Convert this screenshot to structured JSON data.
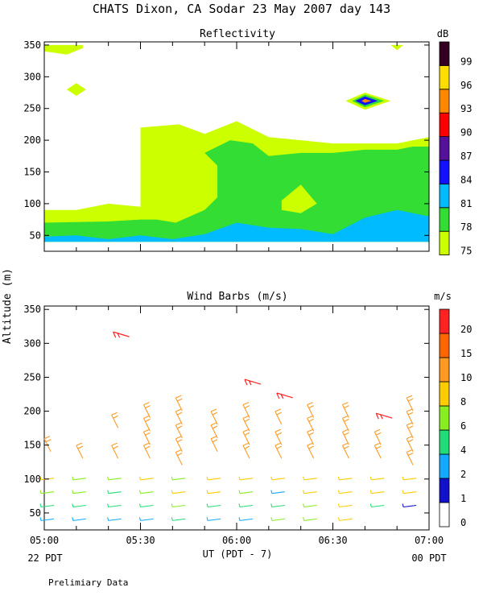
{
  "title": "CHATS Dixon, CA  Sodar  23 May 2007  day 143",
  "footer_note": "Prelimiary Data",
  "chart_data": [
    {
      "type": "heatmap",
      "title": "Reflectivity",
      "colorbar_unit": "dB",
      "colorbar_ticks": [
        "75",
        "78",
        "81",
        "84",
        "87",
        "90",
        "93",
        "96",
        "99"
      ],
      "colorbar_colors": [
        "#ccff00",
        "#33dd33",
        "#00bbff",
        "#1111ff",
        "#551199",
        "#ff0000",
        "#ff8800",
        "#ffdd00",
        "#330022"
      ],
      "ylim": [
        25,
        355
      ],
      "xlim": [
        "05:00",
        "07:00"
      ],
      "yticks": [
        "50",
        "100",
        "150",
        "200",
        "250",
        "300",
        "350"
      ],
      "regions": [
        {
          "level": "75",
          "points": [
            [
              "05:00",
              90
            ],
            [
              "05:10",
              90
            ],
            [
              "05:20",
              100
            ],
            [
              "05:30",
              95
            ],
            [
              "05:30",
              220
            ],
            [
              "05:42",
              225
            ],
            [
              "05:50",
              210
            ],
            [
              "06:00",
              230
            ],
            [
              "06:10",
              205
            ],
            [
              "06:20",
              200
            ],
            [
              "06:30",
              195
            ],
            [
              "06:40",
              195
            ],
            [
              "06:50",
              195
            ],
            [
              "07:00",
              205
            ],
            [
              "07:00",
              40
            ],
            [
              "05:00",
              40
            ]
          ]
        },
        {
          "level": "78",
          "points": [
            [
              "05:00",
              70
            ],
            [
              "05:20",
              72
            ],
            [
              "05:30",
              75
            ],
            [
              "05:35",
              75
            ],
            [
              "05:41",
              70
            ],
            [
              "05:50",
              90
            ],
            [
              "05:54",
              110
            ],
            [
              "05:54",
              160
            ],
            [
              "05:50",
              180
            ],
            [
              "05:58",
              200
            ],
            [
              "06:05",
              195
            ],
            [
              "06:10",
              175
            ],
            [
              "06:20",
              180
            ],
            [
              "06:30",
              180
            ],
            [
              "06:40",
              185
            ],
            [
              "06:50",
              185
            ],
            [
              "06:55",
              190
            ],
            [
              "07:00",
              190
            ],
            [
              "07:00",
              40
            ],
            [
              "05:00",
              40
            ]
          ]
        },
        {
          "level": "81",
          "points": [
            [
              "05:00",
              48
            ],
            [
              "05:10",
              50
            ],
            [
              "05:20",
              44
            ],
            [
              "05:30",
              50
            ],
            [
              "05:40",
              44
            ],
            [
              "05:50",
              52
            ],
            [
              "06:00",
              70
            ],
            [
              "06:10",
              62
            ],
            [
              "06:20",
              60
            ],
            [
              "06:30",
              52
            ],
            [
              "06:40",
              78
            ],
            [
              "06:50",
              90
            ],
            [
              "07:00",
              80
            ],
            [
              "07:00",
              40
            ],
            [
              "05:00",
              40
            ]
          ]
        }
      ],
      "patches": [
        {
          "level": "75",
          "points": [
            [
              "05:00",
              350
            ],
            [
              "05:12",
              350
            ],
            [
              "05:12",
              345
            ],
            [
              "05:07",
              335
            ],
            [
              "05:00",
              340
            ]
          ]
        },
        {
          "level": "75",
          "points": [
            [
              "05:07",
              280
            ],
            [
              "05:10",
              290
            ],
            [
              "05:13",
              280
            ],
            [
              "05:10",
              270
            ]
          ]
        },
        {
          "level": "75",
          "points": [
            [
              "06:48",
              350
            ],
            [
              "06:52",
              350
            ],
            [
              "06:50",
              342
            ]
          ]
        },
        {
          "level": "75",
          "points": [
            [
              "06:14",
              105
            ],
            [
              "06:20",
              130
            ],
            [
              "06:25",
              100
            ],
            [
              "06:20",
              85
            ],
            [
              "06:14",
              90
            ]
          ]
        },
        {
          "level": "75",
          "points": [
            [
              "05:48",
              195
            ],
            [
              "05:51",
              188
            ],
            [
              "05:48",
              180
            ],
            [
              "05:45",
              188
            ]
          ]
        },
        {
          "level": "75",
          "points": [
            [
              "06:34",
              262
            ],
            [
              "06:40",
              275
            ],
            [
              "06:48",
              262
            ],
            [
              "06:40",
              248
            ]
          ]
        },
        {
          "level": "78",
          "points": [
            [
              "06:36",
              262
            ],
            [
              "06:40",
              272
            ],
            [
              "06:46",
              262
            ],
            [
              "06:40",
              252
            ]
          ]
        },
        {
          "level": "84",
          "points": [
            [
              "06:37",
              262
            ],
            [
              "06:40",
              269
            ],
            [
              "06:44",
              262
            ],
            [
              "06:40",
              255
            ]
          ]
        },
        {
          "level": "93",
          "points": [
            [
              "06:39",
              262
            ],
            [
              "06:40",
              265
            ],
            [
              "06:42",
              262
            ],
            [
              "06:40",
              259
            ]
          ]
        }
      ]
    },
    {
      "type": "scatter",
      "title": "Wind Barbs (m/s)",
      "ylabel": "Altitude (m)",
      "colorbar_unit": "m/s",
      "colorbar_ticks": [
        "0",
        "1",
        "2",
        "4",
        "6",
        "8",
        "10",
        "15",
        "20"
      ],
      "colorbar_colors": [
        "#ffffff",
        "#1111cc",
        "#11aaff",
        "#22dd77",
        "#88ee22",
        "#ffcc00",
        "#ff9922",
        "#ff6600",
        "#ff2222"
      ],
      "ylim": [
        25,
        355
      ],
      "xlim": [
        "05:00",
        "07:00"
      ],
      "yticks": [
        "50",
        "100",
        "150",
        "200",
        "250",
        "300",
        "350"
      ],
      "xticks": [
        "05:00",
        "05:30",
        "06:00",
        "06:30",
        "07:00"
      ],
      "xlabel": "UT  (PDT - 7)",
      "x_left_label": "22 PDT",
      "x_right_label": "00 PDT",
      "barbs": [
        {
          "t": "05:01",
          "z": 40,
          "speed": 2
        },
        {
          "t": "05:01",
          "z": 60,
          "speed": 5
        },
        {
          "t": "05:01",
          "z": 80,
          "speed": 6
        },
        {
          "t": "05:01",
          "z": 100,
          "speed": 8
        },
        {
          "t": "05:01",
          "z": 150,
          "speed": 10
        },
        {
          "t": "05:11",
          "z": 40,
          "speed": 2
        },
        {
          "t": "05:11",
          "z": 60,
          "speed": 5
        },
        {
          "t": "05:11",
          "z": 80,
          "speed": 6
        },
        {
          "t": "05:11",
          "z": 100,
          "speed": 6
        },
        {
          "t": "05:11",
          "z": 140,
          "speed": 10
        },
        {
          "t": "05:22",
          "z": 40,
          "speed": 2
        },
        {
          "t": "05:22",
          "z": 60,
          "speed": 5
        },
        {
          "t": "05:22",
          "z": 80,
          "speed": 5
        },
        {
          "t": "05:22",
          "z": 100,
          "speed": 6
        },
        {
          "t": "05:22",
          "z": 140,
          "speed": 10
        },
        {
          "t": "05:22",
          "z": 185,
          "speed": 10
        },
        {
          "t": "05:22",
          "z": 305,
          "speed": 20
        },
        {
          "t": "05:32",
          "z": 40,
          "speed": 2
        },
        {
          "t": "05:32",
          "z": 60,
          "speed": 5
        },
        {
          "t": "05:32",
          "z": 80,
          "speed": 6
        },
        {
          "t": "05:32",
          "z": 100,
          "speed": 8
        },
        {
          "t": "05:32",
          "z": 140,
          "speed": 10
        },
        {
          "t": "05:32",
          "z": 160,
          "speed": 10
        },
        {
          "t": "05:32",
          "z": 180,
          "speed": 10
        },
        {
          "t": "05:32",
          "z": 200,
          "speed": 10
        },
        {
          "t": "05:42",
          "z": 40,
          "speed": 5
        },
        {
          "t": "05:42",
          "z": 60,
          "speed": 6
        },
        {
          "t": "05:42",
          "z": 80,
          "speed": 8
        },
        {
          "t": "05:42",
          "z": 100,
          "speed": 6
        },
        {
          "t": "05:42",
          "z": 130,
          "speed": 10
        },
        {
          "t": "05:42",
          "z": 150,
          "speed": 10
        },
        {
          "t": "05:42",
          "z": 170,
          "speed": 10
        },
        {
          "t": "05:42",
          "z": 190,
          "speed": 10
        },
        {
          "t": "05:42",
          "z": 210,
          "speed": 10
        },
        {
          "t": "05:53",
          "z": 40,
          "speed": 2
        },
        {
          "t": "05:53",
          "z": 60,
          "speed": 4
        },
        {
          "t": "05:53",
          "z": 80,
          "speed": 8
        },
        {
          "t": "05:53",
          "z": 100,
          "speed": 8
        },
        {
          "t": "05:53",
          "z": 150,
          "speed": 10
        },
        {
          "t": "05:53",
          "z": 170,
          "speed": 10
        },
        {
          "t": "05:53",
          "z": 190,
          "speed": 10
        },
        {
          "t": "06:03",
          "z": 40,
          "speed": 2
        },
        {
          "t": "06:03",
          "z": 60,
          "speed": 5
        },
        {
          "t": "06:03",
          "z": 80,
          "speed": 6
        },
        {
          "t": "06:03",
          "z": 100,
          "speed": 8
        },
        {
          "t": "06:03",
          "z": 140,
          "speed": 10
        },
        {
          "t": "06:03",
          "z": 160,
          "speed": 10
        },
        {
          "t": "06:03",
          "z": 180,
          "speed": 10
        },
        {
          "t": "06:03",
          "z": 200,
          "speed": 10
        },
        {
          "t": "06:03",
          "z": 235,
          "speed": 20
        },
        {
          "t": "06:13",
          "z": 40,
          "speed": 6
        },
        {
          "t": "06:13",
          "z": 60,
          "speed": 5
        },
        {
          "t": "06:13",
          "z": 80,
          "speed": 2
        },
        {
          "t": "06:13",
          "z": 100,
          "speed": 8
        },
        {
          "t": "06:13",
          "z": 140,
          "speed": 10
        },
        {
          "t": "06:13",
          "z": 160,
          "speed": 10
        },
        {
          "t": "06:13",
          "z": 190,
          "speed": 10
        },
        {
          "t": "06:13",
          "z": 215,
          "speed": 20
        },
        {
          "t": "06:23",
          "z": 40,
          "speed": 6
        },
        {
          "t": "06:23",
          "z": 60,
          "speed": 6
        },
        {
          "t": "06:23",
          "z": 80,
          "speed": 8
        },
        {
          "t": "06:23",
          "z": 100,
          "speed": 8
        },
        {
          "t": "06:23",
          "z": 140,
          "speed": 10
        },
        {
          "t": "06:23",
          "z": 160,
          "speed": 10
        },
        {
          "t": "06:23",
          "z": 180,
          "speed": 10
        },
        {
          "t": "06:23",
          "z": 200,
          "speed": 10
        },
        {
          "t": "06:34",
          "z": 40,
          "speed": 8
        },
        {
          "t": "06:34",
          "z": 60,
          "speed": 8
        },
        {
          "t": "06:34",
          "z": 80,
          "speed": 8
        },
        {
          "t": "06:34",
          "z": 100,
          "speed": 8
        },
        {
          "t": "06:34",
          "z": 140,
          "speed": 10
        },
        {
          "t": "06:34",
          "z": 160,
          "speed": 10
        },
        {
          "t": "06:34",
          "z": 180,
          "speed": 10
        },
        {
          "t": "06:34",
          "z": 200,
          "speed": 10
        },
        {
          "t": "06:44",
          "z": 60,
          "speed": 4
        },
        {
          "t": "06:44",
          "z": 80,
          "speed": 8
        },
        {
          "t": "06:44",
          "z": 100,
          "speed": 8
        },
        {
          "t": "06:44",
          "z": 140,
          "speed": 10
        },
        {
          "t": "06:44",
          "z": 160,
          "speed": 10
        },
        {
          "t": "06:44",
          "z": 185,
          "speed": 20
        },
        {
          "t": "06:54",
          "z": 60,
          "speed": 1
        },
        {
          "t": "06:54",
          "z": 80,
          "speed": 8
        },
        {
          "t": "06:54",
          "z": 100,
          "speed": 8
        },
        {
          "t": "06:54",
          "z": 130,
          "speed": 10
        },
        {
          "t": "06:54",
          "z": 150,
          "speed": 10
        },
        {
          "t": "06:54",
          "z": 170,
          "speed": 10
        },
        {
          "t": "06:54",
          "z": 190,
          "speed": 10
        },
        {
          "t": "06:54",
          "z": 210,
          "speed": 10
        }
      ]
    }
  ]
}
